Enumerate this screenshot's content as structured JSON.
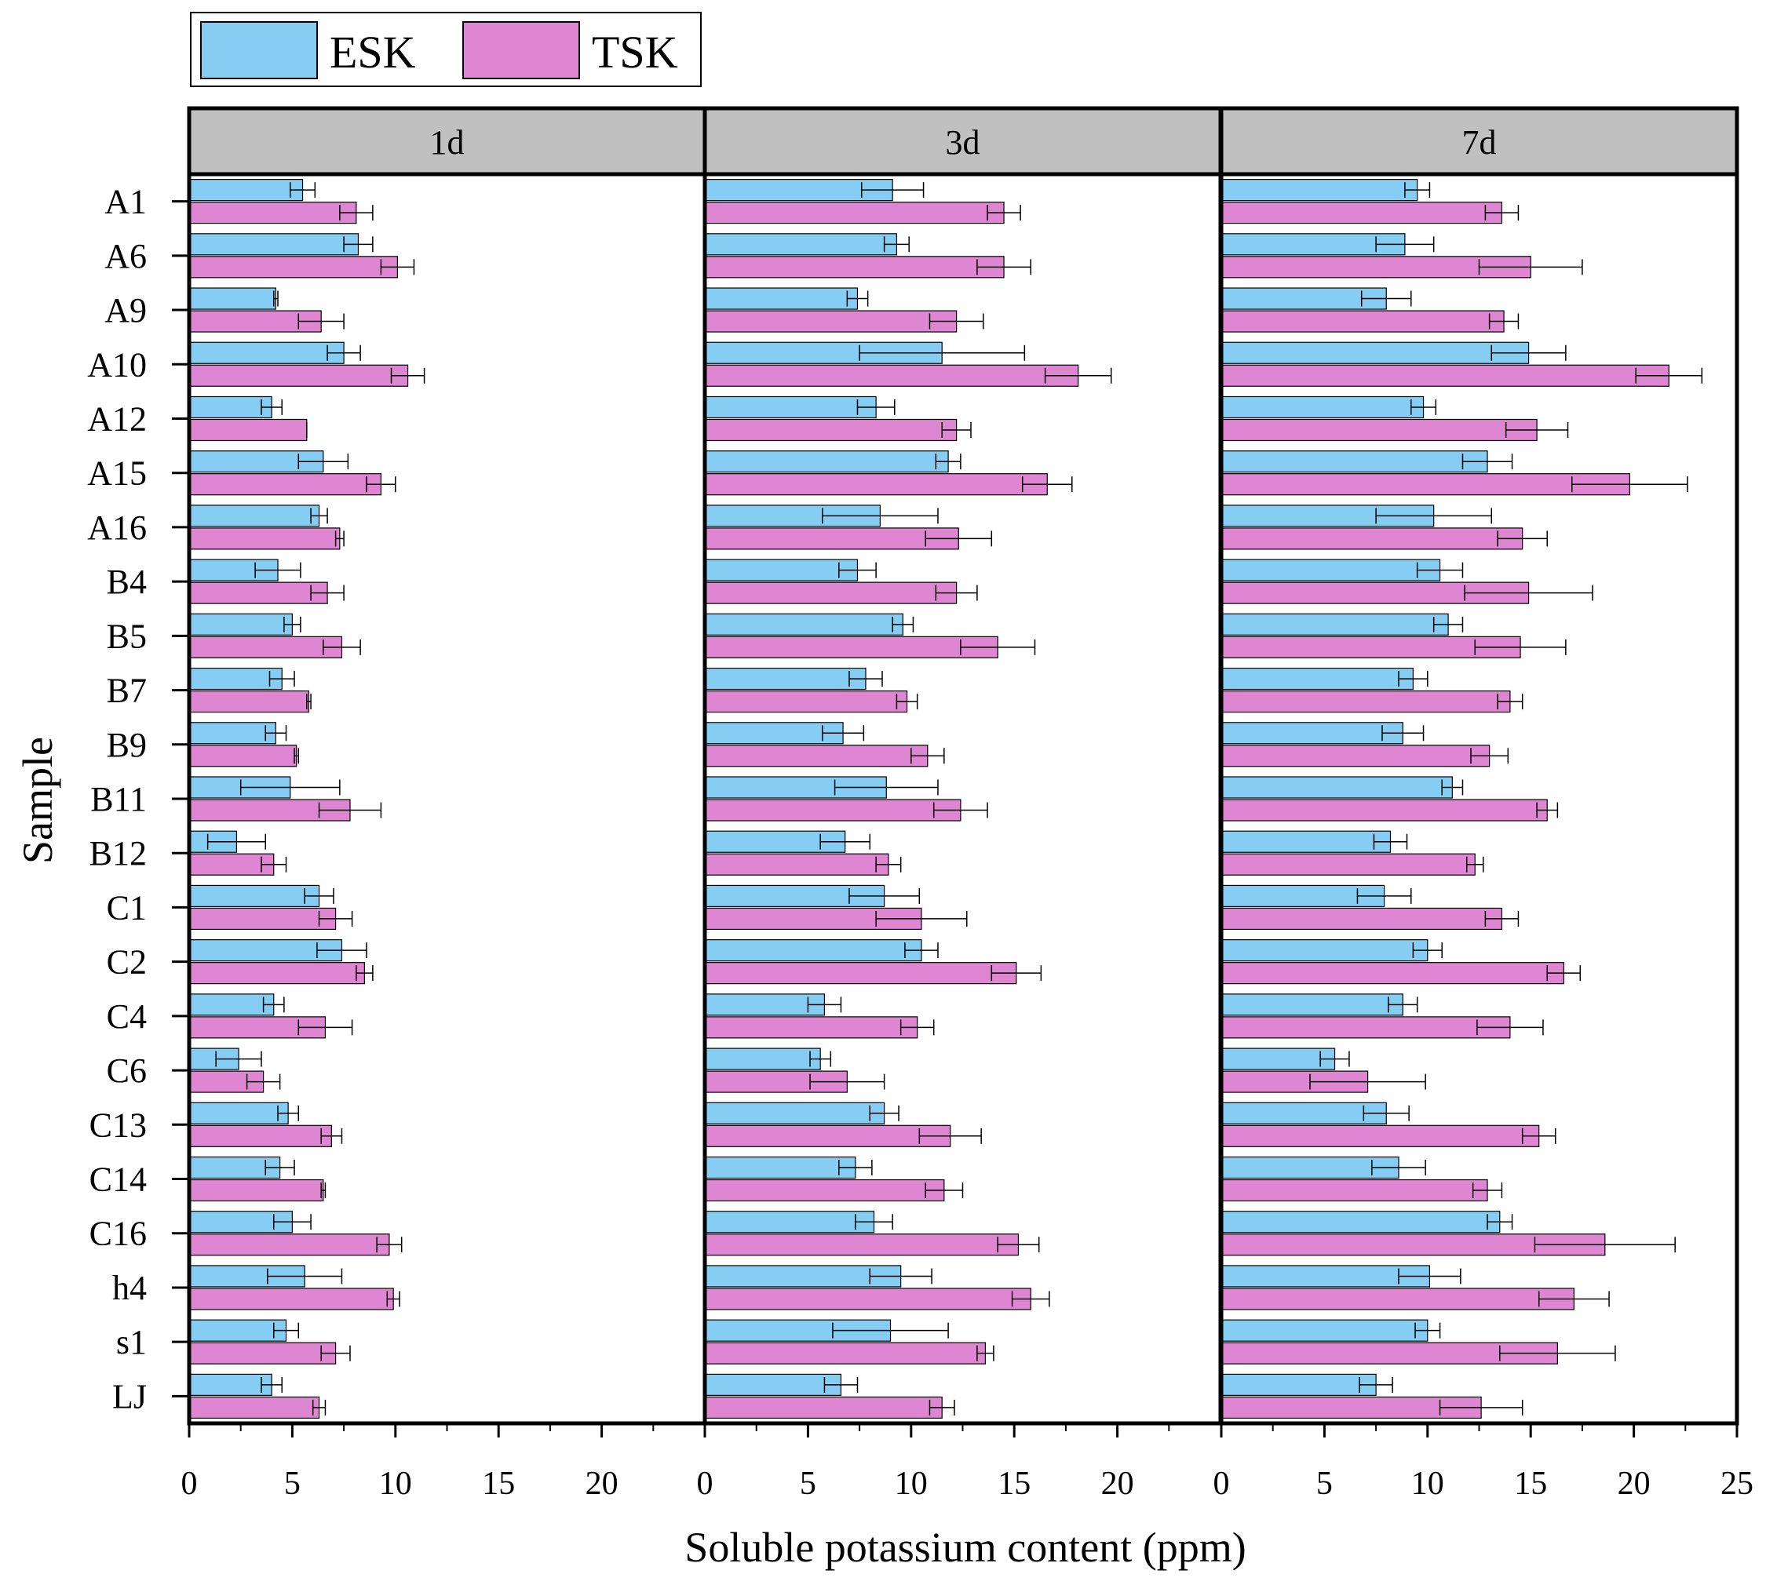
{
  "chart_data": {
    "type": "bar",
    "orientation": "horizontal",
    "xlabel": "Soluble potassium content (ppm)",
    "ylabel": "Sample",
    "categories": [
      "A1",
      "A6",
      "A9",
      "A10",
      "A12",
      "A15",
      "A16",
      "B4",
      "B5",
      "B7",
      "B9",
      "B11",
      "B12",
      "C1",
      "C2",
      "C4",
      "C6",
      "C13",
      "C14",
      "C16",
      "h4",
      "s1",
      "LJ"
    ],
    "legend": {
      "position": "top-left",
      "entries": [
        {
          "name": "ESK",
          "color": "#86cdf3"
        },
        {
          "name": "TSK",
          "color": "#df86d2"
        }
      ]
    },
    "panels": [
      {
        "title": "1d",
        "xlim": [
          0,
          25
        ],
        "xticks": [
          0,
          5,
          10,
          15,
          20
        ],
        "series": [
          {
            "name": "ESK",
            "values": [
              5.5,
              8.2,
              4.2,
              7.5,
              4.0,
              6.5,
              6.3,
              4.3,
              5.0,
              4.5,
              4.2,
              4.9,
              2.3,
              6.3,
              7.4,
              4.1,
              2.4,
              4.8,
              4.4,
              5.0,
              5.6,
              4.7,
              4.0
            ],
            "errors": [
              0.6,
              0.7,
              0.1,
              0.8,
              0.5,
              1.2,
              0.4,
              1.1,
              0.4,
              0.6,
              0.5,
              2.4,
              1.4,
              0.7,
              1.2,
              0.5,
              1.1,
              0.5,
              0.7,
              0.9,
              1.8,
              0.6,
              0.5
            ]
          },
          {
            "name": "TSK",
            "values": [
              8.1,
              10.1,
              6.4,
              10.6,
              5.7,
              9.3,
              7.3,
              6.7,
              7.4,
              5.8,
              5.2,
              7.8,
              4.1,
              7.1,
              8.5,
              6.6,
              3.6,
              6.9,
              6.5,
              9.7,
              9.9,
              7.1,
              6.3
            ],
            "errors": [
              0.8,
              0.8,
              1.1,
              0.8,
              0.0,
              0.7,
              0.2,
              0.8,
              0.9,
              0.1,
              0.1,
              1.5,
              0.6,
              0.8,
              0.4,
              1.3,
              0.8,
              0.5,
              0.1,
              0.6,
              0.3,
              0.7,
              0.3
            ]
          }
        ]
      },
      {
        "title": "3d",
        "xlim": [
          0,
          25
        ],
        "xticks": [
          0,
          5,
          10,
          15,
          20
        ],
        "series": [
          {
            "name": "ESK",
            "values": [
              9.1,
              9.3,
              7.4,
              11.5,
              8.3,
              11.8,
              8.5,
              7.4,
              9.6,
              7.8,
              6.7,
              8.8,
              6.8,
              8.7,
              10.5,
              5.8,
              5.6,
              8.7,
              7.3,
              8.2,
              9.5,
              9.0,
              6.6
            ],
            "errors": [
              1.5,
              0.6,
              0.5,
              4.0,
              0.9,
              0.6,
              2.8,
              0.9,
              0.5,
              0.8,
              1.0,
              2.5,
              1.2,
              1.7,
              0.8,
              0.8,
              0.5,
              0.7,
              0.8,
              0.9,
              1.5,
              2.8,
              0.8
            ]
          },
          {
            "name": "TSK",
            "values": [
              14.5,
              14.5,
              12.2,
              18.1,
              12.2,
              16.6,
              12.3,
              12.2,
              14.2,
              9.8,
              10.8,
              12.4,
              8.9,
              10.5,
              15.1,
              10.3,
              6.9,
              11.9,
              11.6,
              15.2,
              15.8,
              13.6,
              11.5
            ],
            "errors": [
              0.8,
              1.3,
              1.3,
              1.6,
              0.7,
              1.2,
              1.6,
              1.0,
              1.8,
              0.5,
              0.8,
              1.3,
              0.6,
              2.2,
              1.2,
              0.8,
              1.8,
              1.5,
              0.9,
              1.0,
              0.9,
              0.4,
              0.6
            ]
          }
        ]
      },
      {
        "title": "7d",
        "xlim": [
          0,
          25
        ],
        "xticks": [
          0,
          5,
          10,
          15,
          20,
          25
        ],
        "series": [
          {
            "name": "ESK",
            "values": [
              9.5,
              8.9,
              8.0,
              14.9,
              9.8,
              12.9,
              10.3,
              10.6,
              11.0,
              9.3,
              8.8,
              11.2,
              8.2,
              7.9,
              10.0,
              8.8,
              5.5,
              8.0,
              8.6,
              13.5,
              10.1,
              10.0,
              7.5
            ],
            "errors": [
              0.6,
              1.4,
              1.2,
              1.8,
              0.6,
              1.2,
              2.8,
              1.1,
              0.7,
              0.7,
              1.0,
              0.5,
              0.8,
              1.3,
              0.7,
              0.7,
              0.7,
              1.1,
              1.3,
              0.6,
              1.5,
              0.6,
              0.8
            ]
          },
          {
            "name": "TSK",
            "values": [
              13.6,
              15.0,
              13.7,
              21.7,
              15.3,
              19.8,
              14.6,
              14.9,
              14.5,
              14.0,
              13.0,
              15.8,
              12.3,
              13.6,
              16.6,
              14.0,
              7.1,
              15.4,
              12.9,
              18.6,
              17.1,
              16.3,
              12.6
            ],
            "errors": [
              0.8,
              2.5,
              0.7,
              1.6,
              1.5,
              2.8,
              1.2,
              3.1,
              2.2,
              0.6,
              0.9,
              0.5,
              0.4,
              0.8,
              0.8,
              1.6,
              2.8,
              0.8,
              0.7,
              3.4,
              1.7,
              2.8,
              2.0
            ]
          }
        ]
      }
    ]
  }
}
